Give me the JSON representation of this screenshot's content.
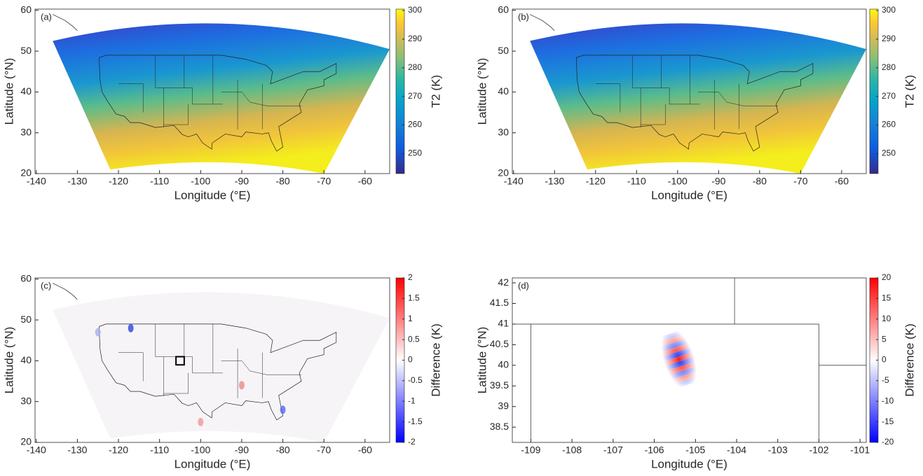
{
  "chart_data": [
    {
      "type": "map",
      "label": "(a)",
      "xlabel": "Longitude (°E)",
      "ylabel": "Latitude (°N)",
      "xlim": [
        -140.3,
        -54
      ],
      "xticks": [
        -140,
        -130,
        -120,
        -110,
        -100,
        -90,
        -80,
        -70,
        -60
      ],
      "ylim": [
        20,
        60.3
      ],
      "yticks": [
        20,
        30,
        40,
        50,
        60
      ],
      "colorbar": {
        "label": "T2 (K)",
        "lim": [
          243,
          300.5
        ],
        "ticks": [
          250,
          260,
          270,
          280,
          290,
          300
        ],
        "colormap": "parula"
      }
    },
    {
      "type": "map",
      "label": "(b)",
      "xlabel": "Longitude (°E)",
      "ylabel": "Latitude (°N)",
      "xlim": [
        -140.3,
        -54
      ],
      "xticks": [
        -140,
        -130,
        -120,
        -110,
        -100,
        -90,
        -80,
        -70,
        -60
      ],
      "ylim": [
        20,
        60.3
      ],
      "yticks": [
        20,
        30,
        40,
        50,
        60
      ],
      "colorbar": {
        "label": "T2 (K)",
        "lim": [
          243,
          300.5
        ],
        "ticks": [
          250,
          260,
          270,
          280,
          290,
          300
        ],
        "colormap": "parula"
      }
    },
    {
      "type": "map",
      "label": "(c)",
      "xlabel": "Longitude (°E)",
      "ylabel": "Latitude (°N)",
      "xlim": [
        -140.3,
        -54
      ],
      "xticks": [
        -140,
        -130,
        -120,
        -110,
        -100,
        -90,
        -80,
        -70,
        -60
      ],
      "ylim": [
        20,
        60.3
      ],
      "yticks": [
        20,
        30,
        40,
        50,
        60
      ],
      "colorbar": {
        "label": "Difference (K)",
        "lim": [
          -2,
          2
        ],
        "ticks": [
          -2,
          -1.5,
          -1,
          -0.5,
          0,
          0.5,
          1,
          1.5,
          2
        ],
        "colormap": "bwr"
      }
    },
    {
      "type": "map",
      "label": "(d)",
      "xlabel": "Longitude (°E)",
      "ylabel": "Latitude (°N)",
      "xlim": [
        -109.45,
        -100.85
      ],
      "xticks": [
        -109,
        -108,
        -107,
        -106,
        -105,
        -104,
        -103,
        -102,
        -101
      ],
      "ylim": [
        38.13,
        42.12
      ],
      "yticks": [
        38.5,
        39,
        39.5,
        40,
        40.5,
        41,
        41.5,
        42
      ],
      "colorbar": {
        "label": "Difference (K)",
        "lim": [
          -20,
          20
        ],
        "ticks": [
          -20,
          -15,
          -10,
          -5,
          0,
          5,
          10,
          15,
          20
        ],
        "colormap": "bwr"
      }
    }
  ]
}
